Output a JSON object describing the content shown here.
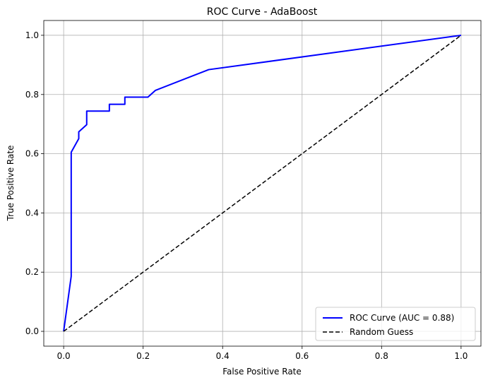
{
  "chart_data": {
    "type": "line",
    "title": "ROC Curve - AdaBoost",
    "xlabel": "False Positive Rate",
    "ylabel": "True Positive Rate",
    "xlim": [
      -0.05,
      1.05
    ],
    "ylim": [
      -0.05,
      1.05
    ],
    "xticks": [
      0.0,
      0.2,
      0.4,
      0.6,
      0.8,
      1.0
    ],
    "yticks": [
      0.0,
      0.2,
      0.4,
      0.6,
      0.8,
      1.0
    ],
    "xtick_labels": [
      "0.0",
      "0.2",
      "0.4",
      "0.6",
      "0.8",
      "1.0"
    ],
    "ytick_labels": [
      "0.0",
      "0.2",
      "0.4",
      "0.6",
      "0.8",
      "1.0"
    ],
    "grid": true,
    "legend_position": "lower-right",
    "series": [
      {
        "name": "ROC Curve (AUC = 0.88)",
        "color": "#0000ff",
        "style": "solid",
        "x": [
          0.0,
          0.019,
          0.019,
          0.019,
          0.038,
          0.038,
          0.038,
          0.058,
          0.058,
          0.115,
          0.115,
          0.154,
          0.154,
          0.212,
          0.231,
          0.365,
          1.0
        ],
        "y": [
          0.0,
          0.186,
          0.488,
          0.605,
          0.651,
          0.674,
          0.674,
          0.698,
          0.744,
          0.744,
          0.767,
          0.767,
          0.791,
          0.791,
          0.814,
          0.884,
          1.0
        ]
      },
      {
        "name": "Random Guess",
        "color": "#000000",
        "style": "dashed",
        "x": [
          0.0,
          1.0
        ],
        "y": [
          0.0,
          1.0
        ]
      }
    ]
  }
}
